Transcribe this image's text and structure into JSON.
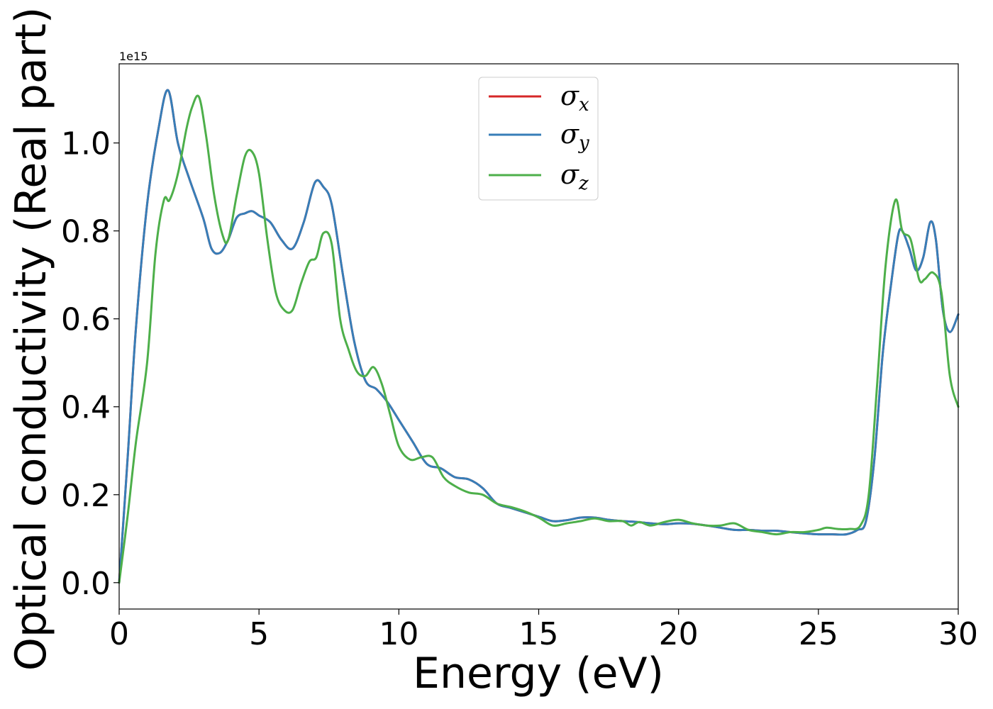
{
  "chart_data": {
    "type": "line",
    "title": "",
    "xlabel": "Energy (eV)",
    "ylabel": "Optical conductivity (Real part)",
    "y_offset_text": "1e15",
    "xlim": [
      0,
      30
    ],
    "ylim": [
      -0.06,
      1.18
    ],
    "xticks": [
      0,
      5,
      10,
      15,
      20,
      25,
      30
    ],
    "xtick_labels": [
      "0",
      "5",
      "10",
      "15",
      "20",
      "25",
      "30"
    ],
    "yticks": [
      0.0,
      0.2,
      0.4,
      0.6,
      0.8,
      1.0
    ],
    "ytick_labels": [
      "0.0",
      "0.2",
      "0.4",
      "0.6",
      "0.8",
      "1.0"
    ],
    "grid": false,
    "legend_position": "top-center",
    "series": [
      {
        "name": "σx",
        "legend_symbol": "σ",
        "legend_sub": "x",
        "color": "#d62728",
        "x": [
          0,
          0.3,
          0.6,
          1.0,
          1.4,
          1.75,
          2.1,
          2.5,
          3.0,
          3.3,
          3.6,
          3.9,
          4.2,
          4.5,
          4.75,
          5.0,
          5.4,
          5.8,
          6.2,
          6.6,
          7.0,
          7.3,
          7.6,
          8.0,
          8.4,
          8.8,
          9.2,
          9.6,
          10.0,
          10.5,
          11.0,
          11.5,
          12.0,
          12.5,
          13.0,
          13.5,
          14.0,
          14.5,
          15.0,
          15.5,
          16.0,
          16.5,
          17.0,
          17.5,
          18.0,
          18.5,
          19.0,
          19.5,
          20.0,
          20.5,
          21.0,
          21.5,
          22.0,
          22.5,
          23.0,
          23.5,
          24.0,
          24.5,
          25.0,
          25.5,
          26.0,
          26.4,
          26.7,
          27.0,
          27.3,
          27.6,
          27.85,
          28.0,
          28.25,
          28.5,
          28.75,
          29.0,
          29.2,
          29.45,
          29.7,
          30.0
        ],
        "y": [
          0.0,
          0.28,
          0.58,
          0.86,
          1.03,
          1.12,
          1.0,
          0.92,
          0.83,
          0.76,
          0.75,
          0.78,
          0.83,
          0.84,
          0.845,
          0.835,
          0.82,
          0.78,
          0.76,
          0.82,
          0.91,
          0.9,
          0.86,
          0.7,
          0.55,
          0.46,
          0.44,
          0.41,
          0.37,
          0.32,
          0.27,
          0.26,
          0.24,
          0.235,
          0.215,
          0.18,
          0.17,
          0.16,
          0.15,
          0.14,
          0.142,
          0.148,
          0.148,
          0.143,
          0.14,
          0.138,
          0.135,
          0.133,
          0.135,
          0.134,
          0.13,
          0.125,
          0.12,
          0.12,
          0.118,
          0.118,
          0.115,
          0.112,
          0.11,
          0.11,
          0.11,
          0.12,
          0.14,
          0.28,
          0.52,
          0.68,
          0.79,
          0.8,
          0.76,
          0.71,
          0.74,
          0.82,
          0.78,
          0.62,
          0.57,
          0.61
        ]
      },
      {
        "name": "σy",
        "legend_symbol": "σ",
        "legend_sub": "y",
        "color": "#377eb8",
        "x": [
          0,
          0.3,
          0.6,
          1.0,
          1.4,
          1.75,
          2.1,
          2.5,
          3.0,
          3.3,
          3.6,
          3.9,
          4.2,
          4.5,
          4.75,
          5.0,
          5.4,
          5.8,
          6.2,
          6.6,
          7.0,
          7.3,
          7.6,
          8.0,
          8.4,
          8.8,
          9.2,
          9.6,
          10.0,
          10.5,
          11.0,
          11.5,
          12.0,
          12.5,
          13.0,
          13.5,
          14.0,
          14.5,
          15.0,
          15.5,
          16.0,
          16.5,
          17.0,
          17.5,
          18.0,
          18.5,
          19.0,
          19.5,
          20.0,
          20.5,
          21.0,
          21.5,
          22.0,
          22.5,
          23.0,
          23.5,
          24.0,
          24.5,
          25.0,
          25.5,
          26.0,
          26.4,
          26.7,
          27.0,
          27.3,
          27.6,
          27.85,
          28.0,
          28.25,
          28.5,
          28.75,
          29.0,
          29.2,
          29.45,
          29.7,
          30.0
        ],
        "y": [
          0.0,
          0.28,
          0.58,
          0.86,
          1.03,
          1.12,
          1.0,
          0.92,
          0.83,
          0.76,
          0.75,
          0.78,
          0.83,
          0.84,
          0.845,
          0.835,
          0.82,
          0.78,
          0.76,
          0.82,
          0.91,
          0.9,
          0.86,
          0.7,
          0.55,
          0.46,
          0.44,
          0.41,
          0.37,
          0.32,
          0.27,
          0.26,
          0.24,
          0.235,
          0.215,
          0.18,
          0.17,
          0.16,
          0.15,
          0.14,
          0.142,
          0.148,
          0.148,
          0.143,
          0.14,
          0.138,
          0.135,
          0.133,
          0.135,
          0.134,
          0.13,
          0.125,
          0.12,
          0.12,
          0.118,
          0.118,
          0.115,
          0.112,
          0.11,
          0.11,
          0.11,
          0.12,
          0.14,
          0.28,
          0.52,
          0.68,
          0.79,
          0.8,
          0.76,
          0.71,
          0.74,
          0.82,
          0.78,
          0.62,
          0.57,
          0.61
        ]
      },
      {
        "name": "σz",
        "legend_symbol": "σ",
        "legend_sub": "z",
        "color": "#4daf4a",
        "x": [
          0,
          0.3,
          0.6,
          1.0,
          1.3,
          1.6,
          1.8,
          2.1,
          2.4,
          2.6,
          2.85,
          3.1,
          3.4,
          3.7,
          3.9,
          4.2,
          4.5,
          4.75,
          5.0,
          5.3,
          5.6,
          5.9,
          6.2,
          6.5,
          6.8,
          7.05,
          7.3,
          7.6,
          7.9,
          8.2,
          8.5,
          8.8,
          9.1,
          9.4,
          9.7,
          10.0,
          10.4,
          10.8,
          11.2,
          11.6,
          12.0,
          12.5,
          13.0,
          13.5,
          14.0,
          14.5,
          15.0,
          15.5,
          16.0,
          16.5,
          17.0,
          17.5,
          18.0,
          18.3,
          18.6,
          19.0,
          19.5,
          20.0,
          20.5,
          21.0,
          21.5,
          22.0,
          22.5,
          23.0,
          23.5,
          24.0,
          24.5,
          25.0,
          25.3,
          25.7,
          26.1,
          26.5,
          26.8,
          27.1,
          27.4,
          27.75,
          28.0,
          28.3,
          28.6,
          28.8,
          29.1,
          29.4,
          29.7,
          30.0
        ],
        "y": [
          0.0,
          0.15,
          0.32,
          0.5,
          0.75,
          0.87,
          0.87,
          0.93,
          1.03,
          1.08,
          1.105,
          1.02,
          0.88,
          0.79,
          0.78,
          0.88,
          0.97,
          0.98,
          0.93,
          0.78,
          0.66,
          0.62,
          0.62,
          0.68,
          0.73,
          0.74,
          0.795,
          0.77,
          0.6,
          0.53,
          0.48,
          0.47,
          0.49,
          0.45,
          0.38,
          0.31,
          0.28,
          0.285,
          0.285,
          0.24,
          0.22,
          0.205,
          0.2,
          0.18,
          0.172,
          0.162,
          0.148,
          0.13,
          0.135,
          0.14,
          0.146,
          0.14,
          0.14,
          0.13,
          0.138,
          0.13,
          0.138,
          0.143,
          0.135,
          0.13,
          0.13,
          0.135,
          0.12,
          0.115,
          0.11,
          0.115,
          0.115,
          0.12,
          0.125,
          0.122,
          0.122,
          0.13,
          0.2,
          0.45,
          0.72,
          0.87,
          0.8,
          0.78,
          0.69,
          0.69,
          0.705,
          0.66,
          0.47,
          0.4
        ]
      }
    ]
  }
}
